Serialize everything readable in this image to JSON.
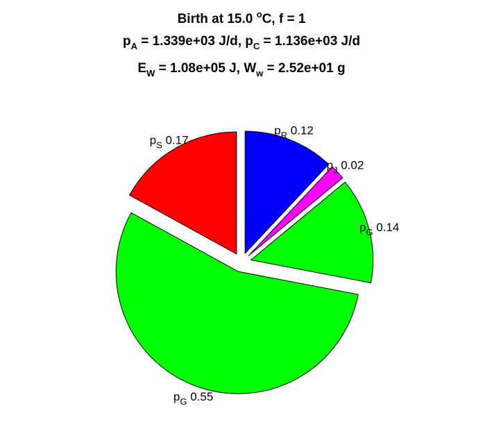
{
  "title": {
    "line1": {
      "prefix": "Birth at 15.0 ",
      "sup": "o",
      "suffix": "C, f = 1"
    },
    "line2": {
      "a_base": "p",
      "a_sub": "A",
      "a_value": " = 1.339e+03 J/d, ",
      "c_base": "p",
      "c_sub": "C",
      "c_value": " = 1.136e+03 J/d"
    },
    "line3": {
      "e_base": "E",
      "e_sub": "W",
      "e_value": " = 1.08e+05 J, ",
      "w_base": "W",
      "w_sub": "w",
      "w_value": " = 2.52e+01 g"
    }
  },
  "chart_data": {
    "type": "pie",
    "exploded": true,
    "slices": [
      {
        "base": "p",
        "sub": "R",
        "value": 0.12,
        "value_label": "0.12",
        "color": "#0000ff"
      },
      {
        "base": "p",
        "sub": "J",
        "value": 0.02,
        "value_label": "0.02",
        "color": "#ff00ff"
      },
      {
        "base": "p",
        "sub": "G",
        "value": 0.14,
        "value_label": "0.14",
        "color": "#00ff00"
      },
      {
        "base": "p",
        "sub": "G",
        "value": 0.55,
        "value_label": "0.55",
        "color": "#00ff00"
      },
      {
        "base": "p",
        "sub": "S",
        "value": 0.17,
        "value_label": "0.17",
        "color": "#ff0000"
      }
    ]
  }
}
